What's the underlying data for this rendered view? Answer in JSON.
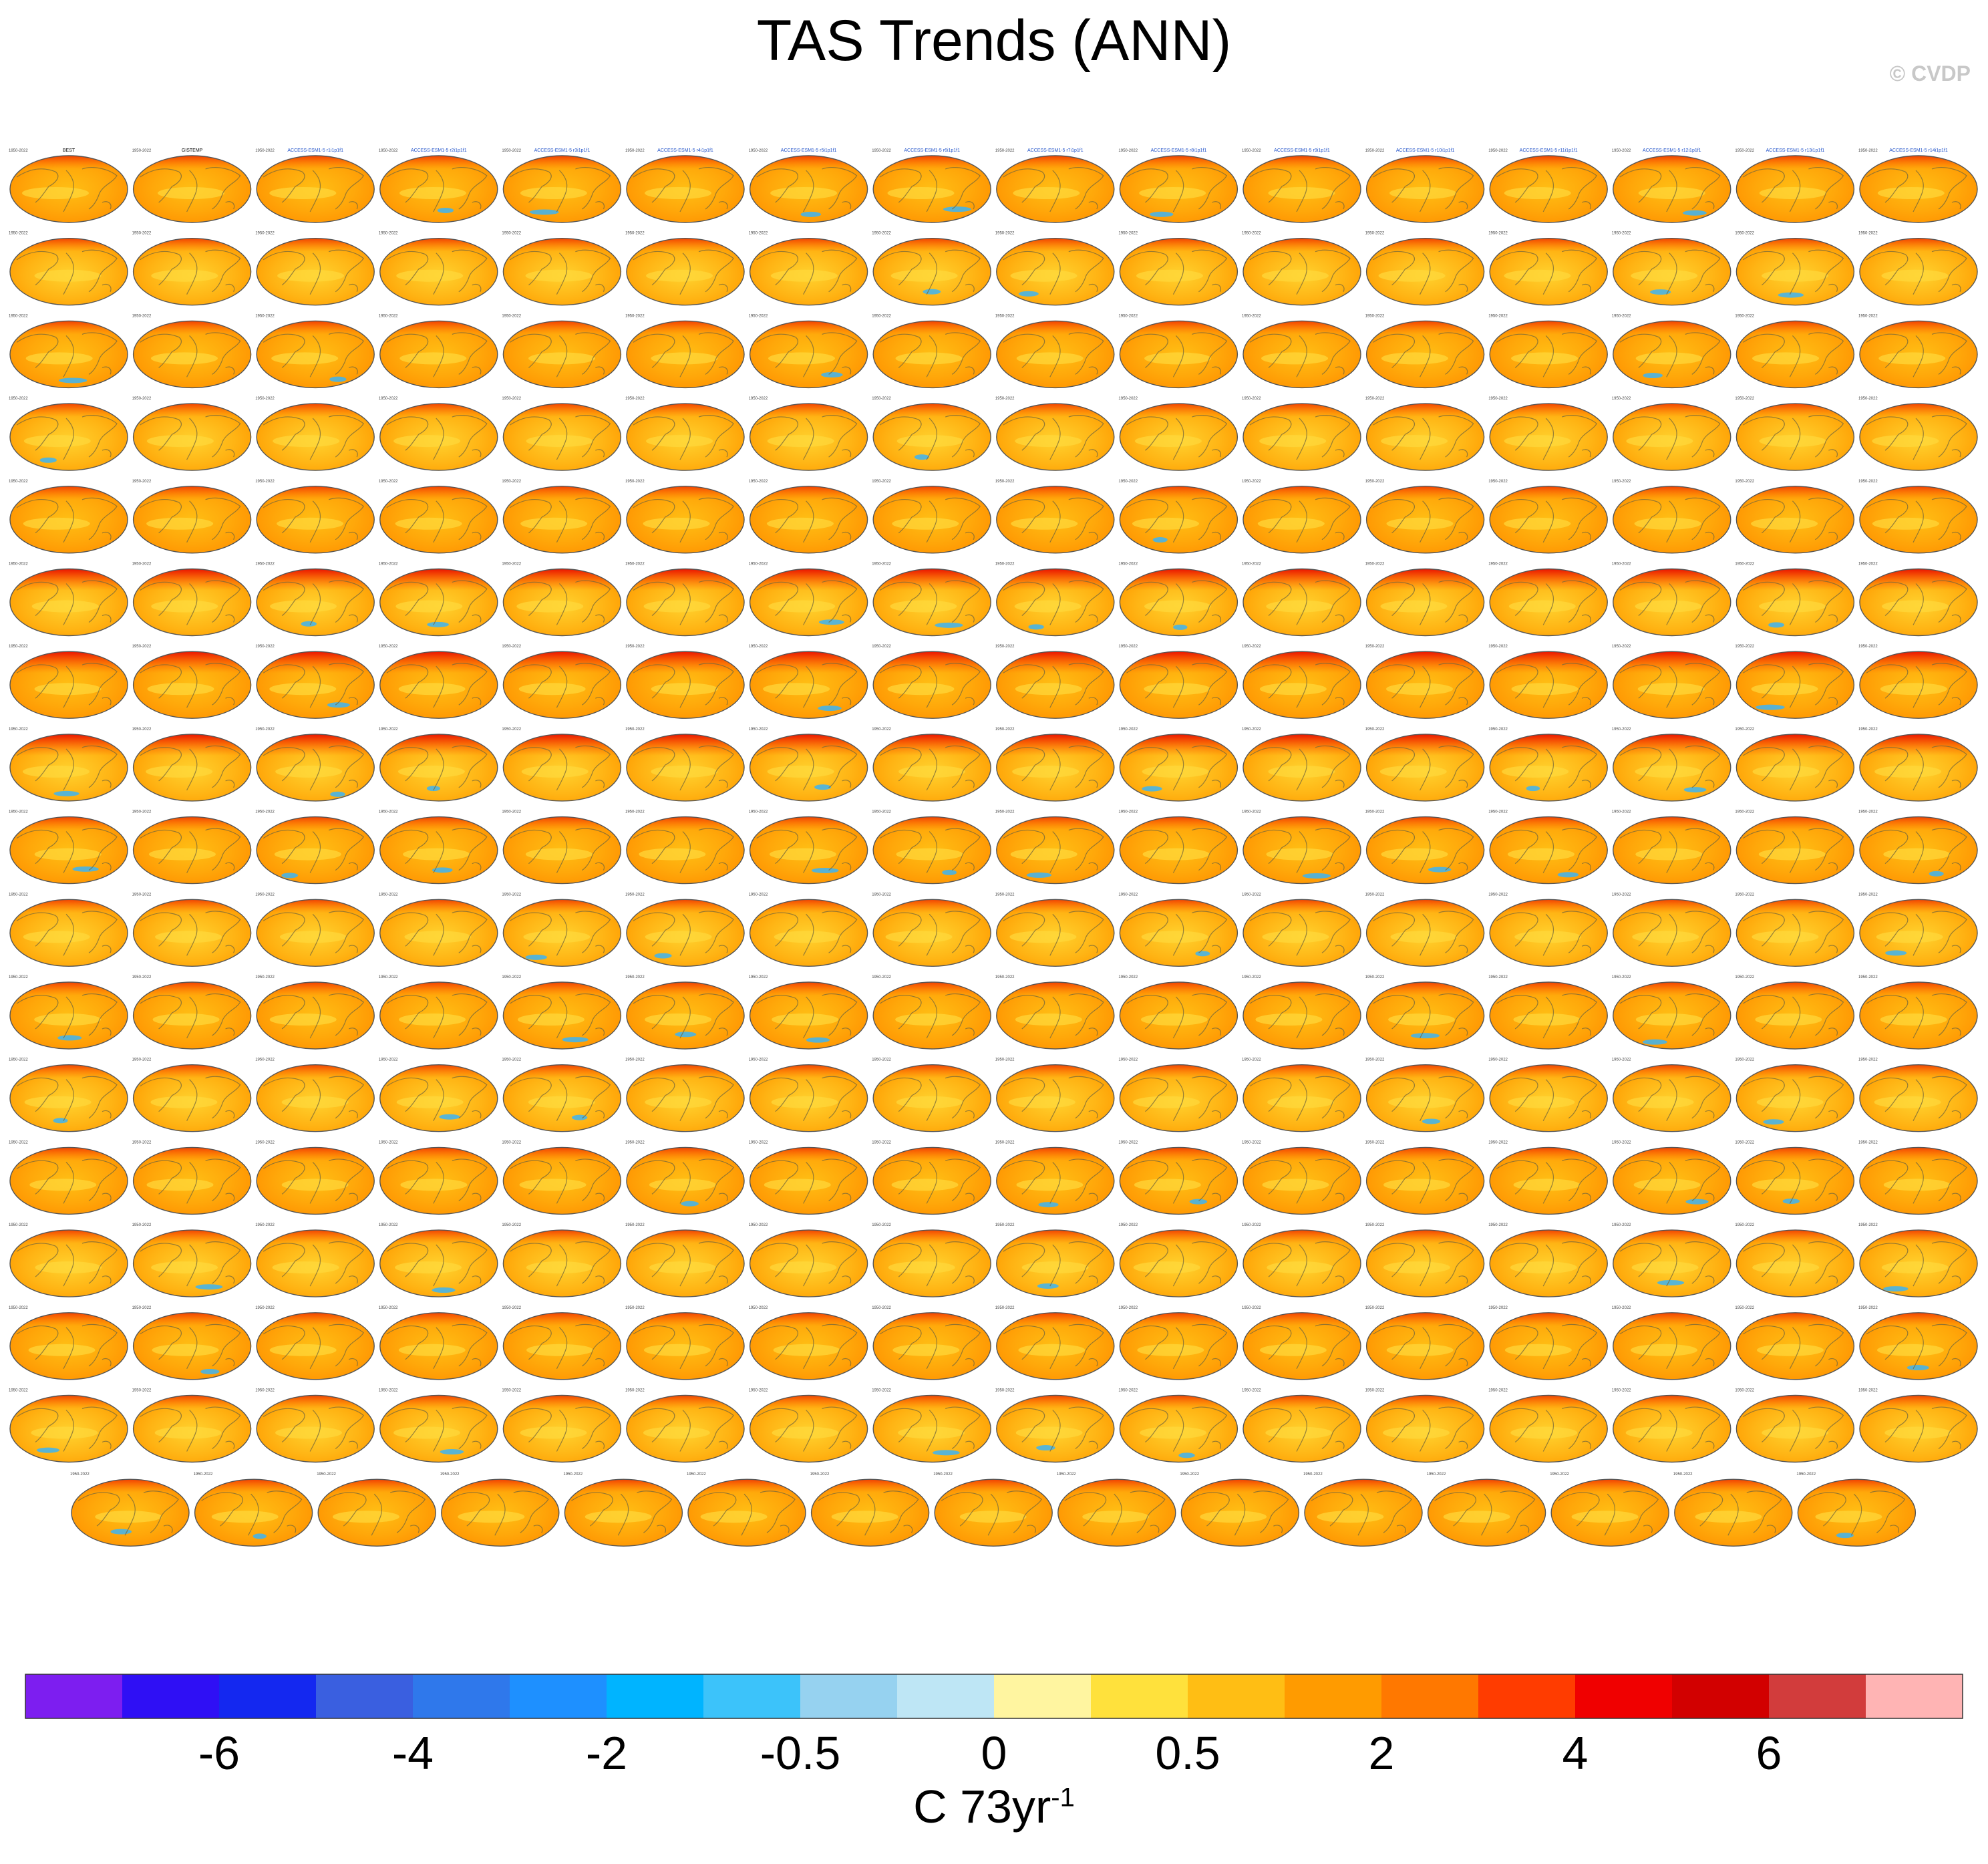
{
  "title": "TAS Trends (ANN)",
  "credit": "© CVDP",
  "units": {
    "base": "C 73yr",
    "exponent": "-1"
  },
  "chart_data": {
    "type": "heatmap",
    "title": "TAS Trends (ANN)",
    "panel_grid": {
      "rows": 17,
      "columns": 16,
      "last_row_panels": 15,
      "total_panels": 271
    },
    "panel_titles_row1": [
      "BEST",
      "GISTEMP",
      "ACCESS-ESM1-5 r1i1p1f1",
      "ACCESS-ESM1-5 r2i1p1f1",
      "ACCESS-ESM1-5 r3i1p1f1",
      "ACCESS-ESM1-5 r4i1p1f1",
      "ACCESS-ESM1-5 r5i1p1f1",
      "ACCESS-ESM1-5 r6i1p1f1",
      "ACCESS-ESM1-5 r7i1p1f1",
      "ACCESS-ESM1-5 r8i1p1f1",
      "ACCESS-ESM1-5 r9i1p1f1",
      "ACCESS-ESM1-5 r10i1p1f1",
      "ACCESS-ESM1-5 r11i1p1f1",
      "ACCESS-ESM1-5 r12i1p1f1",
      "ACCESS-ESM1-5 r13i1p1f1",
      "ACCESS-ESM1-5 r14i1p1f1"
    ],
    "period_label": "1950-2022",
    "colorbar": {
      "colors": [
        "#7d1ef0",
        "#2f0ff5",
        "#1428f0",
        "#3a5fe0",
        "#2f78eb",
        "#1e90ff",
        "#00b4ff",
        "#3cc3fa",
        "#96d2f0",
        "#bee6f5",
        "#fff5a0",
        "#ffe13c",
        "#ffbe14",
        "#ff9b00",
        "#ff7800",
        "#ff3c00",
        "#f00000",
        "#d20000",
        "#d23c3c",
        "#ffb4b4"
      ],
      "tick_labels": [
        "-6",
        "-4",
        "-2",
        "-0.5",
        "0",
        "0.5",
        "2",
        "4",
        "6"
      ],
      "xlabel": "C 73yr-1"
    }
  }
}
